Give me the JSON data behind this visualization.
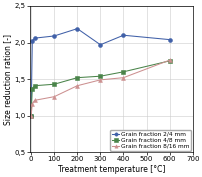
{
  "title": "",
  "xlabel": "Treatment temperature [°C]",
  "ylabel": "Size reduction ration [-]",
  "xlim": [
    -5,
    700
  ],
  "ylim": [
    0.5,
    2.5
  ],
  "xticks": [
    0,
    100,
    200,
    300,
    400,
    500,
    600,
    700
  ],
  "yticks": [
    0.5,
    1.0,
    1.5,
    2.0,
    2.5
  ],
  "series": [
    {
      "label": "Grain fraction 2/4 mm",
      "color": "#4060a8",
      "marker": "o",
      "markersize": 2.8,
      "linewidth": 0.75,
      "x": [
        0,
        5,
        15,
        100,
        200,
        300,
        400,
        600
      ],
      "y": [
        1.0,
        2.02,
        2.06,
        2.09,
        2.19,
        1.97,
        2.1,
        2.04
      ]
    },
    {
      "label": "Grain fraction 4/8 mm",
      "color": "#4a844a",
      "marker": "s",
      "markersize": 2.8,
      "linewidth": 0.75,
      "x": [
        0,
        5,
        15,
        100,
        200,
        300,
        400,
        600
      ],
      "y": [
        1.0,
        1.37,
        1.41,
        1.43,
        1.52,
        1.54,
        1.6,
        1.75
      ]
    },
    {
      "label": "Grain fraction 8/16 mm",
      "color": "#cc9090",
      "marker": "^",
      "markersize": 2.8,
      "linewidth": 0.75,
      "x": [
        0,
        5,
        15,
        100,
        200,
        300,
        400,
        600
      ],
      "y": [
        1.0,
        1.16,
        1.21,
        1.26,
        1.41,
        1.49,
        1.52,
        1.76
      ]
    }
  ],
  "legend_loc": "lower right",
  "legend_fontsize": 4.2,
  "tick_fontsize": 5.0,
  "label_fontsize": 5.5,
  "grid": true,
  "grid_color": "#cccccc",
  "grid_linewidth": 0.4,
  "background_color": "#ffffff"
}
